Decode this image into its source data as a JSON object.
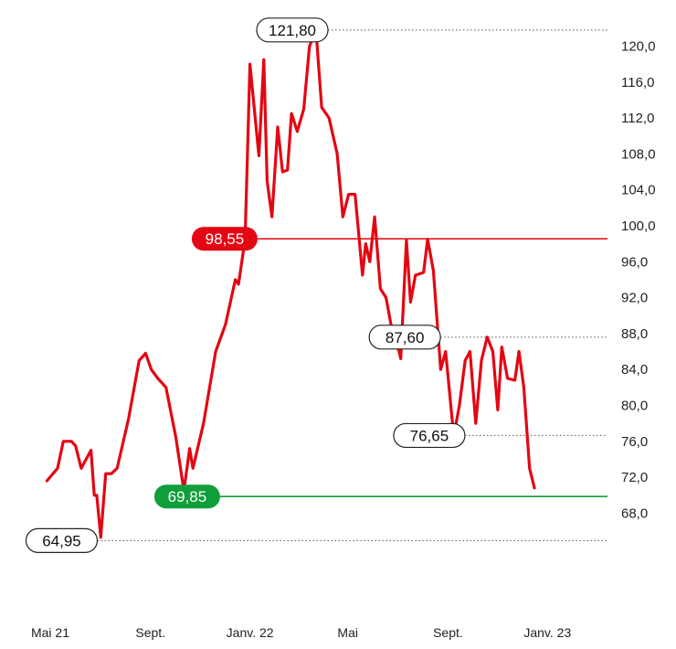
{
  "chart_data": {
    "type": "line",
    "title": "",
    "xlabel": "",
    "ylabel": "",
    "ylim": [
      64.2,
      123.6
    ],
    "y_ticks": [
      {
        "value": 68.0,
        "label": "68,0"
      },
      {
        "value": 72.0,
        "label": "72,0"
      },
      {
        "value": 76.0,
        "label": "76,0"
      },
      {
        "value": 80.0,
        "label": "80,0"
      },
      {
        "value": 84.0,
        "label": "84,0"
      },
      {
        "value": 88.0,
        "label": "88,0"
      },
      {
        "value": 92.0,
        "label": "92,0"
      },
      {
        "value": 96.0,
        "label": "96,0"
      },
      {
        "value": 100.0,
        "label": "100,0"
      },
      {
        "value": 104.0,
        "label": "104,0"
      },
      {
        "value": 108.0,
        "label": "108,0"
      },
      {
        "value": 112.0,
        "label": "112,0"
      },
      {
        "value": 116.0,
        "label": "116,0"
      },
      {
        "value": 120.0,
        "label": "120,0"
      }
    ],
    "x_ticks": [
      {
        "date": "2021-05",
        "label": "Mai 21"
      },
      {
        "date": "2021-09",
        "label": "Sept."
      },
      {
        "date": "2022-01",
        "label": "Janv. 22"
      },
      {
        "date": "2022-05",
        "label": "Mai"
      },
      {
        "date": "2022-09",
        "label": "Sept."
      },
      {
        "date": "2023-01",
        "label": "Janv. 23"
      }
    ],
    "x_range": [
      "2021-05-01",
      "2023-02-10"
    ],
    "series": [
      {
        "color": "#e30613",
        "points": [
          [
            "2021-04-27",
            71.6
          ],
          [
            "2021-05-10",
            73.0
          ],
          [
            "2021-05-17",
            76.0
          ],
          [
            "2021-05-27",
            76.0
          ],
          [
            "2021-06-01",
            75.5
          ],
          [
            "2021-06-08",
            73.0
          ],
          [
            "2021-06-20",
            75.0
          ],
          [
            "2021-06-24",
            70.0
          ],
          [
            "2021-06-27",
            70.0
          ],
          [
            "2021-07-02",
            65.3
          ],
          [
            "2021-07-08",
            72.4
          ],
          [
            "2021-07-15",
            72.4
          ],
          [
            "2021-07-22",
            73.0
          ],
          [
            "2021-08-05",
            78.5
          ],
          [
            "2021-08-18",
            85.0
          ],
          [
            "2021-08-26",
            85.8
          ],
          [
            "2021-09-02",
            84.0
          ],
          [
            "2021-09-10",
            83.0
          ],
          [
            "2021-09-20",
            82.0
          ],
          [
            "2021-10-02",
            76.5
          ],
          [
            "2021-10-12",
            70.5
          ],
          [
            "2021-10-19",
            75.2
          ],
          [
            "2021-10-23",
            73.0
          ],
          [
            "2021-11-05",
            78.0
          ],
          [
            "2021-11-20",
            86.0
          ],
          [
            "2021-12-02",
            89.0
          ],
          [
            "2021-12-14",
            94.0
          ],
          [
            "2021-12-18",
            93.5
          ],
          [
            "2021-12-26",
            98.5
          ],
          [
            "2022-01-01",
            118.0
          ],
          [
            "2022-01-12",
            107.8
          ],
          [
            "2022-01-18",
            118.5
          ],
          [
            "2022-01-22",
            105.0
          ],
          [
            "2022-01-28",
            101.0
          ],
          [
            "2022-02-04",
            111.0
          ],
          [
            "2022-02-10",
            106.0
          ],
          [
            "2022-02-16",
            106.2
          ],
          [
            "2022-02-21",
            112.5
          ],
          [
            "2022-02-28",
            110.5
          ],
          [
            "2022-03-08",
            113.0
          ],
          [
            "2022-03-15",
            120.0
          ],
          [
            "2022-03-23",
            121.8
          ],
          [
            "2022-03-30",
            113.2
          ],
          [
            "2022-04-08",
            112.0
          ],
          [
            "2022-04-18",
            108.0
          ],
          [
            "2022-04-25",
            101.0
          ],
          [
            "2022-05-02",
            103.5
          ],
          [
            "2022-05-10",
            103.5
          ],
          [
            "2022-05-19",
            94.5
          ],
          [
            "2022-05-23",
            98.0
          ],
          [
            "2022-05-28",
            96.0
          ],
          [
            "2022-06-03",
            101.0
          ],
          [
            "2022-06-10",
            93.0
          ],
          [
            "2022-06-17",
            92.0
          ],
          [
            "2022-06-26",
            87.5
          ],
          [
            "2022-07-03",
            86.0
          ],
          [
            "2022-07-05",
            85.2
          ],
          [
            "2022-07-12",
            98.4
          ],
          [
            "2022-07-17",
            91.5
          ],
          [
            "2022-07-23",
            94.5
          ],
          [
            "2022-08-02",
            94.8
          ],
          [
            "2022-08-07",
            98.5
          ],
          [
            "2022-08-14",
            95.0
          ],
          [
            "2022-08-23",
            84.0
          ],
          [
            "2022-08-29",
            86.0
          ],
          [
            "2022-09-08",
            76.6
          ],
          [
            "2022-09-15",
            80.0
          ],
          [
            "2022-09-22",
            85.0
          ],
          [
            "2022-09-28",
            86.0
          ],
          [
            "2022-10-05",
            78.0
          ],
          [
            "2022-10-12",
            85.0
          ],
          [
            "2022-10-19",
            87.6
          ],
          [
            "2022-10-26",
            86.0
          ],
          [
            "2022-11-01",
            79.5
          ],
          [
            "2022-11-06",
            86.5
          ],
          [
            "2022-11-13",
            83.0
          ],
          [
            "2022-11-22",
            82.8
          ],
          [
            "2022-11-27",
            86.0
          ],
          [
            "2022-12-03",
            82.0
          ],
          [
            "2022-12-10",
            73.0
          ],
          [
            "2022-12-16",
            70.8
          ]
        ]
      }
    ],
    "reference_lines": [
      {
        "value": 98.55,
        "label": "98,55",
        "color": "#e30613",
        "style": "solid",
        "label_style": "filled",
        "start_date": "2021-12-01"
      },
      {
        "value": 69.85,
        "label": "69,85",
        "color": "#109e3a",
        "style": "solid",
        "label_style": "filled",
        "start_date": "2021-10-16"
      }
    ],
    "callouts": [
      {
        "value": 121.8,
        "label": "121,80",
        "date": "2022-02-22"
      },
      {
        "value": 87.6,
        "label": "87,60",
        "date": "2022-07-10"
      },
      {
        "value": 76.65,
        "label": "76,65",
        "date": "2022-08-09"
      },
      {
        "value": 64.95,
        "label": "64,95",
        "date": "2021-05-15"
      }
    ],
    "grid": false,
    "legend": "none"
  }
}
